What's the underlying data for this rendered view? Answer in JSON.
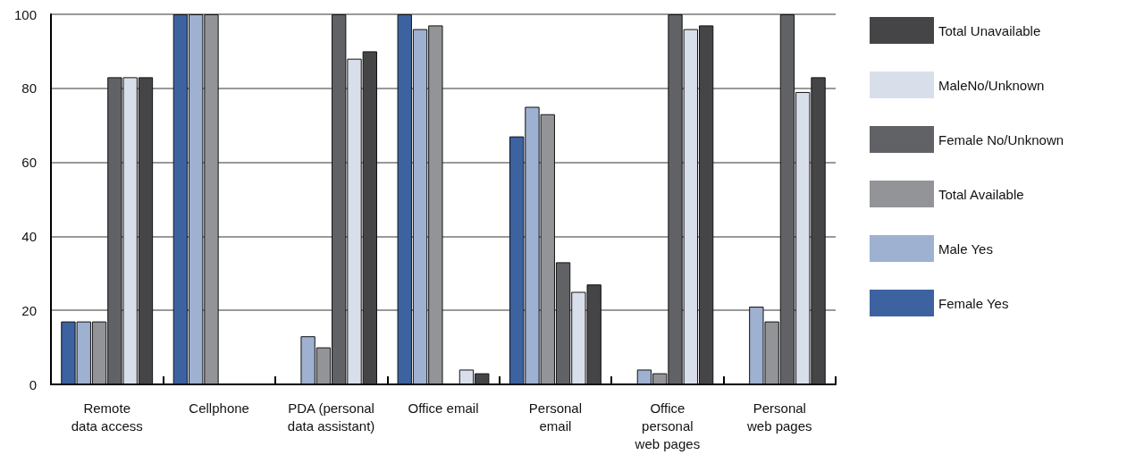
{
  "chart_data": {
    "type": "bar",
    "categories": [
      "Remote\ndata access",
      "Cellphone",
      "PDA (personal\ndata assistant)",
      "Office email",
      "Personal\nemail",
      "Office\npersonal\nweb pages",
      "Personal\nweb pages"
    ],
    "series": [
      {
        "name": "Female Yes",
        "color": "#3d62a0",
        "values": [
          17,
          100,
          0,
          100,
          67,
          0,
          0
        ]
      },
      {
        "name": "Male Yes",
        "color": "#9eb1d1",
        "values": [
          17,
          100,
          13,
          96,
          75,
          4,
          21
        ]
      },
      {
        "name": "Total Available",
        "color": "#939498",
        "values": [
          17,
          100,
          10,
          97,
          73,
          3,
          17
        ]
      },
      {
        "name": "Female No/Unknown",
        "color": "#616266",
        "values": [
          83,
          0,
          100,
          0,
          33,
          100,
          100
        ]
      },
      {
        "name": "MaleNo/Unknown",
        "color": "#d9dfea",
        "values": [
          83,
          0,
          88,
          4,
          25,
          96,
          79
        ]
      },
      {
        "name": "Total Unavailable",
        "color": "#454547",
        "values": [
          83,
          0,
          90,
          3,
          27,
          97,
          83
        ]
      }
    ],
    "ylim": [
      0,
      100
    ],
    "yticks": [
      0,
      20,
      40,
      60,
      80,
      100
    ],
    "grid": "y",
    "legend": "right"
  }
}
